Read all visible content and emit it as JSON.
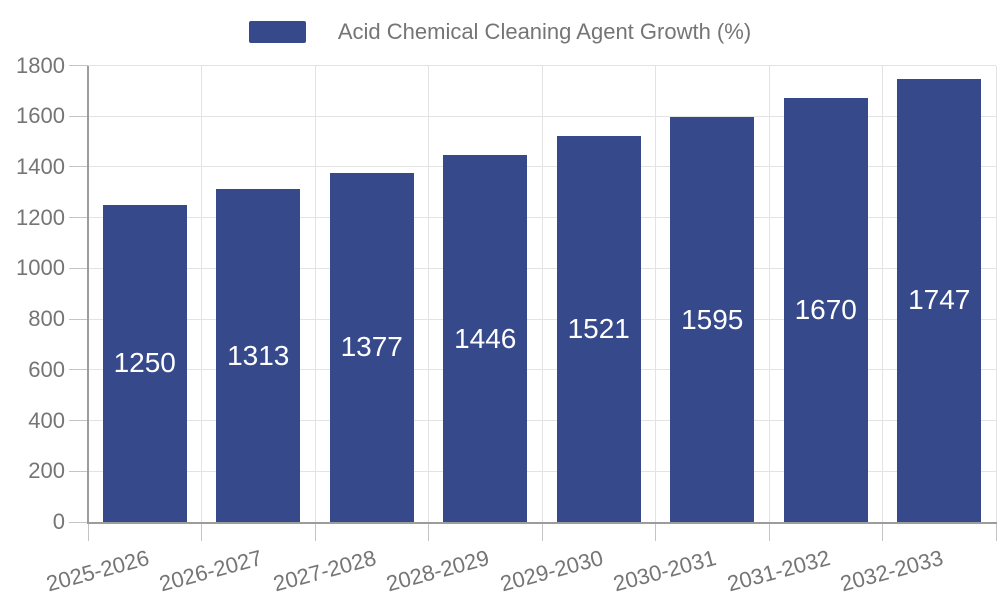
{
  "legend": {
    "label": "Acid Chemical Cleaning Agent Growth (%)"
  },
  "colors": {
    "bar": "#36498b",
    "axis_text": "#757575",
    "grid": "#e3e3e3",
    "tick": "#c4c4c4",
    "axis_line": "#9c9c9c",
    "value_label": "#ffffff",
    "background": "#ffffff"
  },
  "chart_data": {
    "type": "bar",
    "title": "Acid Chemical Cleaning Agent Growth (%)",
    "categories": [
      "2025-2026",
      "2026-2027",
      "2027-2028",
      "2028-2029",
      "2029-2030",
      "2030-2031",
      "2031-2032",
      "2032-2033"
    ],
    "values": [
      1250,
      1313,
      1377,
      1446,
      1521,
      1595,
      1670,
      1747
    ],
    "xlabel": "",
    "ylabel": "",
    "ylim": [
      0,
      1800
    ],
    "ytick_step": 200,
    "yticks": [
      0,
      200,
      400,
      600,
      800,
      1000,
      1200,
      1400,
      1600,
      1800
    ],
    "grid": "on",
    "legend_position": "top-center",
    "value_labels": "inside-center",
    "x_label_rotation_deg": -15
  }
}
